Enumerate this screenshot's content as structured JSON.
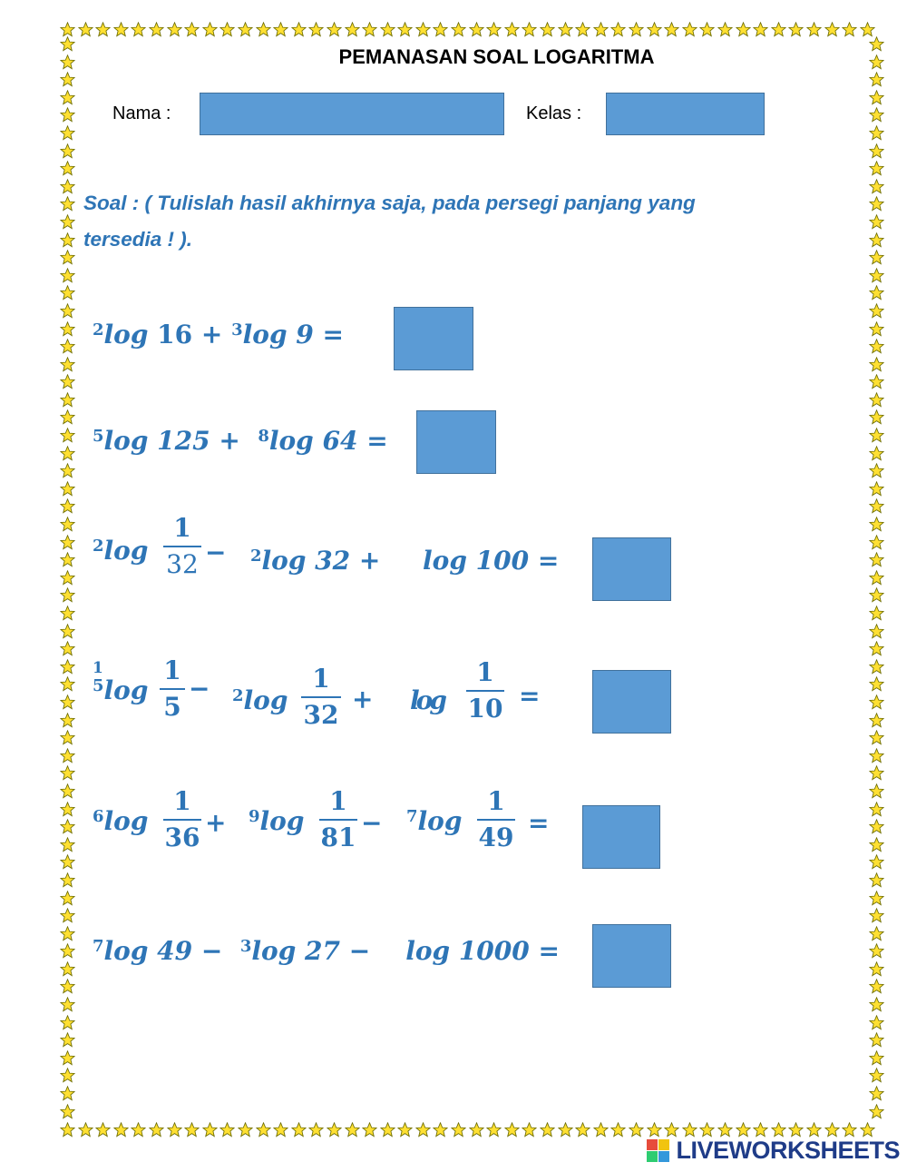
{
  "header": {
    "title": "PEMANASAN SOAL LOGARITMA",
    "name_label": "Nama :",
    "class_label": "Kelas :"
  },
  "instruction": {
    "line1": "Soal  : ( Tulislah hasil akhirnya saja, pada persegi panjang yang",
    "line2": "tersedia ! )."
  },
  "questions": {
    "q1": {
      "b1": "2",
      "t1": "log",
      "n1": "16 +",
      "b2": "3",
      "t2": "log 9 ="
    },
    "q2": {
      "b1": "5",
      "t1": "log 125 +",
      "b2": "8",
      "t2": "log 64 ="
    },
    "q3": {
      "b1": "2",
      "t1": "log",
      "f1_num": "1",
      "f1_den": "32",
      "op1": "−",
      "b2": "2",
      "t2": "log 32  +",
      "t3": "log 100 ="
    },
    "q4": {
      "b1": "1",
      "b1b": "5",
      "t1": "log",
      "f1_num": "1",
      "f1_den": "5",
      "op1": "−",
      "b2": "2",
      "t2": "log",
      "f2_num": "1",
      "f2_den": "32",
      "op2": "+",
      "t3": "log",
      "f3_num": "1",
      "f3_den": "10",
      "eq": "="
    },
    "q5": {
      "b1": "6",
      "t1": "log",
      "f1_num": "1",
      "f1_den": "36",
      "op1": "+",
      "b2": "9",
      "t2": "log",
      "f2_num": "1",
      "f2_den": "81",
      "op2": "−",
      "b3": "7",
      "t3": "log",
      "f3_num": "1",
      "f3_den": "49",
      "eq": "="
    },
    "q6": {
      "b1": "7",
      "t1": "log 49 −",
      "b2": "3",
      "t2": "log 27 −",
      "t3": "log 1000 ="
    }
  },
  "answers": [
    "",
    "",
    "",
    "",
    "",
    ""
  ],
  "colors": {
    "text_blue": "#2e75b6",
    "box_fill": "#5b9bd5",
    "star": "#ffe033"
  },
  "icons": {
    "border": "star-icon",
    "brand": "liveworksheets-logo-icon"
  },
  "brand": {
    "name": "LIVEWORKSHEETS"
  }
}
